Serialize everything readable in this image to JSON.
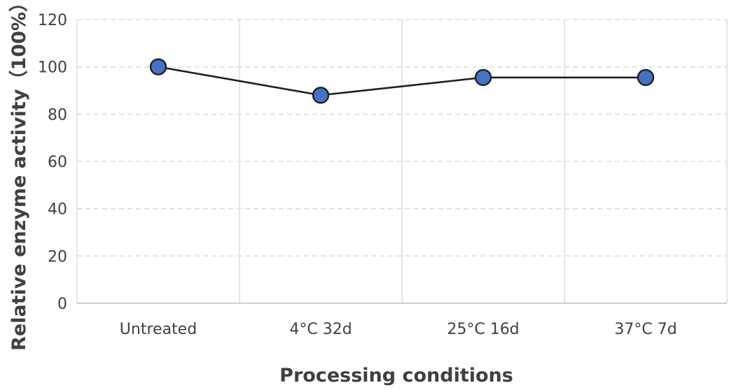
{
  "chart_data": {
    "type": "line",
    "title": "",
    "xlabel": "Processing conditions",
    "ylabel": "Relative enzyme activity（100%）",
    "categories": [
      "Untreated",
      "4°C 32d",
      "25°C 16d",
      "37°C 7d"
    ],
    "series": [
      {
        "values": [
          100,
          88,
          95.5,
          95.5
        ],
        "color": "#4472c4",
        "line_color": "#1f1f1f"
      }
    ],
    "ylim": [
      0,
      120
    ],
    "yticks": [
      0,
      20,
      40,
      60,
      80,
      100,
      120
    ],
    "grid": {
      "horizontal": "dashed",
      "vertical": "solid-category-separators"
    },
    "legend": "none"
  }
}
